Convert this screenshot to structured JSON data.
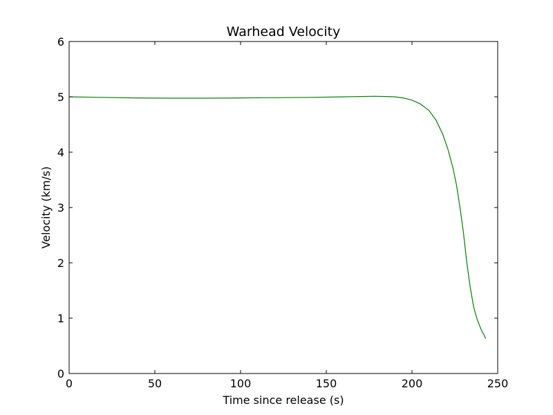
{
  "chart_data": {
    "type": "line",
    "title": "Warhead Velocity",
    "xlabel": "Time since release (s)",
    "ylabel": "Velocity (km/s)",
    "xlim": [
      0,
      250
    ],
    "ylim": [
      0,
      6
    ],
    "xticks": [
      0,
      50,
      100,
      150,
      200,
      250
    ],
    "yticks": [
      0,
      1,
      2,
      3,
      4,
      5,
      6
    ],
    "grid": false,
    "series": [
      {
        "color": "#008000",
        "x": [
          0,
          20,
          40,
          60,
          80,
          100,
          120,
          140,
          160,
          170,
          178,
          185,
          190,
          195,
          200,
          205,
          210,
          214,
          218,
          221,
          224,
          226,
          228,
          230,
          232,
          234,
          236,
          238,
          240,
          241,
          242,
          243
        ],
        "y": [
          5.0,
          4.99,
          4.98,
          4.975,
          4.975,
          4.98,
          4.985,
          4.99,
          5.0,
          5.005,
          5.01,
          5.005,
          5.0,
          4.98,
          4.94,
          4.87,
          4.75,
          4.58,
          4.32,
          4.05,
          3.7,
          3.4,
          3.0,
          2.55,
          2.0,
          1.55,
          1.2,
          0.98,
          0.82,
          0.75,
          0.7,
          0.63
        ]
      }
    ]
  }
}
